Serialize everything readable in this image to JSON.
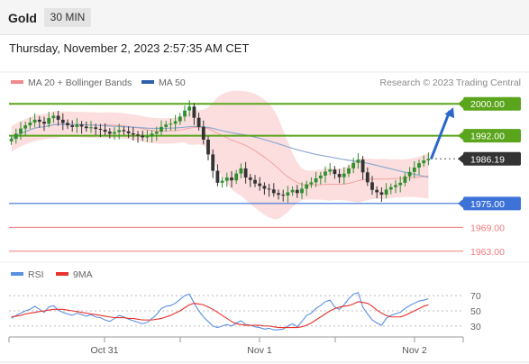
{
  "header": {
    "title": "Gold",
    "timeframe_label": "30 MIN"
  },
  "datetime": "Thursday, November 2, 2023 2:57:35 AM CET",
  "copyright": "Research © 2023 Trading Central",
  "colors": {
    "bollinger": "#f08a8a",
    "ma50": "#2d5fa8",
    "resistance": "#5aa51c",
    "support": "#3d72d6",
    "support_minor": "#f07c7c",
    "rsi": "#5b8fe0",
    "rsi_ma": "#e8322c"
  },
  "chart_data": [
    {
      "type": "candlestick",
      "legend": [
        {
          "name": "MA 20 + Bollinger Bands"
        },
        {
          "name": "MA 50"
        }
      ],
      "price_levels": [
        {
          "label": "2000.00",
          "value": 2000.0,
          "kind": "resistance"
        },
        {
          "label": "1992.00",
          "value": 1992.0,
          "kind": "resistance"
        },
        {
          "label": "1986.19",
          "value": 1986.19,
          "kind": "last"
        },
        {
          "label": "1975.00",
          "value": 1975.0,
          "kind": "support"
        },
        {
          "label": "1969.00",
          "value": 1969.0,
          "kind": "support"
        },
        {
          "label": "1963.00",
          "value": 1963.0,
          "kind": "support"
        }
      ],
      "ylim": [
        1960.5,
        2007.5
      ],
      "x_tick_labels": [
        "Oct 31",
        "Nov 1",
        "Nov 2"
      ],
      "close": [
        1991.2,
        1992.5,
        1993.8,
        1994.6,
        1995.3,
        1996.0,
        1995.5,
        1995.0,
        1996.4,
        1997.0,
        1996.0,
        1995.2,
        1994.6,
        1994.2,
        1994.8,
        1994.3,
        1993.9,
        1994.1,
        1993.7,
        1993.5,
        1993.0,
        1992.5,
        1992.9,
        1993.4,
        1993.1,
        1992.6,
        1992.3,
        1992.0,
        1991.6,
        1991.8,
        1992.5,
        1993.0,
        1994.2,
        1994.8,
        1995.0,
        1995.6,
        1996.8,
        1998.3,
        1999.3,
        1996.5,
        1994.2,
        1991.0,
        1987.3,
        1983.2,
        1980.2,
        1980.7,
        1981.5,
        1980.8,
        1982.5,
        1983.8,
        1981.5,
        1980.9,
        1980.0,
        1979.4,
        1978.7,
        1978.5,
        1977.6,
        1977.2,
        1977.0,
        1977.8,
        1978.4,
        1977.6,
        1978.7,
        1979.8,
        1980.3,
        1981.3,
        1982.0,
        1983.0,
        1983.5,
        1982.4,
        1981.6,
        1982.5,
        1983.8,
        1985.2,
        1986.0,
        1982.8,
        1980.3,
        1978.4,
        1977.8,
        1977.2,
        1978.5,
        1979.1,
        1979.6,
        1980.2,
        1981.8,
        1982.9,
        1984.0,
        1985.1,
        1985.8,
        1986.19
      ],
      "target_projection": {
        "from": 1986.19,
        "to": 2000.0
      }
    },
    {
      "type": "line",
      "legend": [
        {
          "name": "RSI"
        },
        {
          "name": "9MA"
        }
      ],
      "y_tick_labels": [
        "70",
        "50",
        "30"
      ],
      "ylim": [
        18,
        82
      ],
      "series": [
        {
          "name": "RSI",
          "values": [
            40,
            44,
            47,
            50,
            52,
            56,
            52,
            48,
            55,
            57,
            51,
            48,
            46,
            44,
            47,
            45,
            43,
            45,
            42,
            41,
            38,
            36,
            40,
            44,
            42,
            39,
            37,
            35,
            33,
            35,
            40,
            45,
            53,
            56,
            57,
            60,
            65,
            70,
            72,
            60,
            50,
            42,
            36,
            30,
            28,
            30,
            32,
            30,
            34,
            37,
            32,
            31,
            29,
            28,
            26,
            27,
            25,
            25,
            26,
            30,
            33,
            29,
            36,
            44,
            47,
            53,
            57,
            62,
            64,
            55,
            52,
            58,
            66,
            72,
            74,
            55,
            46,
            38,
            34,
            31,
            40,
            44,
            46,
            48,
            53,
            57,
            60,
            63,
            64,
            66
          ]
        },
        {
          "name": "9MA",
          "values": [
            42,
            43,
            44,
            46,
            47,
            48,
            49,
            50,
            51,
            52,
            52,
            52,
            51,
            50,
            49,
            48,
            47,
            46,
            45,
            44,
            43,
            42,
            41,
            41,
            41,
            40,
            40,
            39,
            38,
            38,
            38,
            39,
            40,
            42,
            44,
            47,
            50,
            54,
            58,
            60,
            59,
            58,
            55,
            52,
            48,
            44,
            40,
            36,
            33,
            32,
            31,
            31,
            31,
            31,
            30,
            30,
            29,
            28,
            28,
            28,
            28,
            28,
            29,
            31,
            34,
            38,
            42,
            46,
            50,
            53,
            55,
            56,
            57,
            59,
            62,
            61,
            60,
            56,
            51,
            47,
            44,
            42,
            42,
            42,
            44,
            47,
            50,
            53,
            56,
            58
          ]
        }
      ]
    }
  ]
}
